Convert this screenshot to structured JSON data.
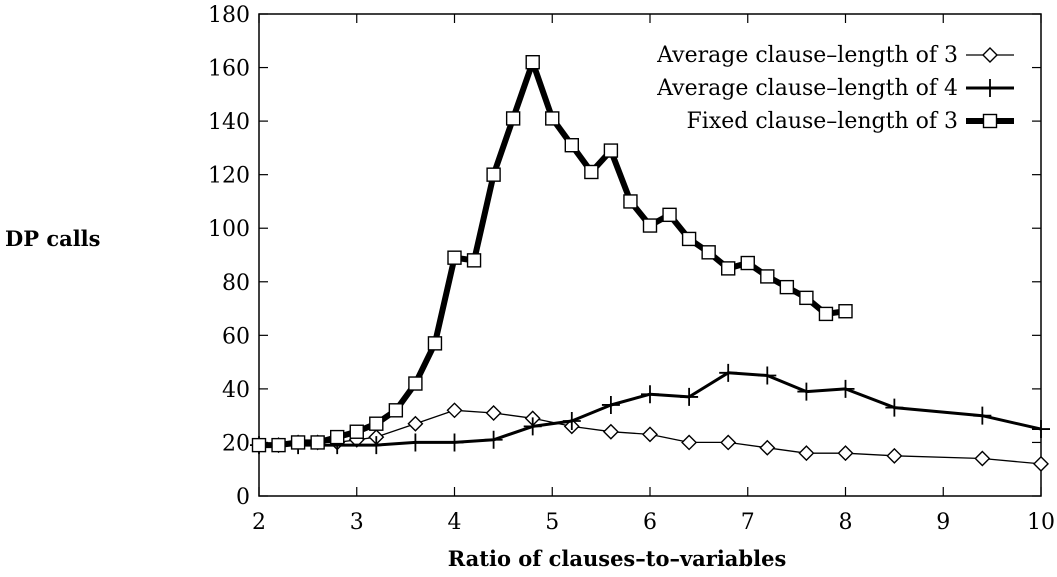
{
  "chart_data": {
    "type": "line",
    "title": "",
    "xlabel": "Ratio of clauses–to–variables",
    "ylabel": "DP calls",
    "xlim": [
      2,
      10
    ],
    "ylim": [
      0,
      180
    ],
    "xticks": [
      2,
      3,
      4,
      5,
      6,
      7,
      8,
      9,
      10
    ],
    "yticks": [
      0,
      20,
      40,
      60,
      80,
      100,
      120,
      140,
      160,
      180
    ],
    "grid": false,
    "legend_position": "top-right",
    "series": [
      {
        "name": "Average clause–length of 3",
        "marker": "diamond",
        "line_width": "thin",
        "color": "#000000",
        "points": [
          [
            2.0,
            19
          ],
          [
            2.2,
            19
          ],
          [
            2.4,
            20
          ],
          [
            2.6,
            20
          ],
          [
            2.8,
            20
          ],
          [
            3.0,
            21
          ],
          [
            3.2,
            22
          ],
          [
            3.6,
            27
          ],
          [
            4.0,
            32
          ],
          [
            4.4,
            31
          ],
          [
            4.8,
            29
          ],
          [
            5.2,
            26
          ],
          [
            5.6,
            24
          ],
          [
            6.0,
            23
          ],
          [
            6.4,
            20
          ],
          [
            6.8,
            20
          ],
          [
            7.2,
            18
          ],
          [
            7.6,
            16
          ],
          [
            8.0,
            16
          ],
          [
            8.5,
            15
          ],
          [
            9.4,
            14
          ],
          [
            10.0,
            12
          ]
        ]
      },
      {
        "name": "Average clause–length of 4",
        "marker": "plus",
        "line_width": "medium",
        "color": "#000000",
        "points": [
          [
            2.0,
            19
          ],
          [
            2.4,
            19
          ],
          [
            2.8,
            19
          ],
          [
            3.2,
            19
          ],
          [
            3.6,
            20
          ],
          [
            4.0,
            20
          ],
          [
            4.4,
            21
          ],
          [
            4.8,
            26
          ],
          [
            5.2,
            28
          ],
          [
            5.6,
            34
          ],
          [
            6.0,
            38
          ],
          [
            6.4,
            37
          ],
          [
            6.8,
            46
          ],
          [
            7.2,
            45
          ],
          [
            7.6,
            39
          ],
          [
            8.0,
            40
          ],
          [
            8.5,
            33
          ],
          [
            9.4,
            30
          ],
          [
            10.0,
            25
          ]
        ]
      },
      {
        "name": "Fixed clause–length of 3",
        "marker": "square",
        "line_width": "thick",
        "color": "#000000",
        "points": [
          [
            2.0,
            19
          ],
          [
            2.2,
            19
          ],
          [
            2.4,
            20
          ],
          [
            2.6,
            20
          ],
          [
            2.8,
            22
          ],
          [
            3.0,
            24
          ],
          [
            3.2,
            27
          ],
          [
            3.4,
            32
          ],
          [
            3.6,
            42
          ],
          [
            3.8,
            57
          ],
          [
            4.0,
            89
          ],
          [
            4.2,
            88
          ],
          [
            4.4,
            120
          ],
          [
            4.6,
            141
          ],
          [
            4.8,
            162
          ],
          [
            5.0,
            141
          ],
          [
            5.2,
            131
          ],
          [
            5.4,
            121
          ],
          [
            5.6,
            129
          ],
          [
            5.8,
            110
          ],
          [
            6.0,
            101
          ],
          [
            6.2,
            105
          ],
          [
            6.4,
            96
          ],
          [
            6.6,
            91
          ],
          [
            6.8,
            85
          ],
          [
            7.0,
            87
          ],
          [
            7.2,
            82
          ],
          [
            7.4,
            78
          ],
          [
            7.6,
            74
          ],
          [
            7.8,
            68
          ],
          [
            8.0,
            69
          ]
        ]
      }
    ]
  }
}
